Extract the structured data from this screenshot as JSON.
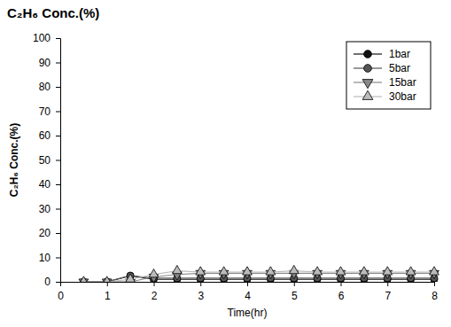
{
  "chart_data": {
    "type": "line",
    "title": "C₂H₆ Conc.(%)",
    "x_label": "Time(hr)",
    "y_label": "C₂H₆ Conc.(%)",
    "x": [
      0.5,
      1,
      1.5,
      2,
      2.5,
      3,
      3.5,
      4,
      4.5,
      5,
      5.5,
      6,
      6.5,
      7,
      7.5,
      8
    ],
    "series": [
      {
        "name": "1bar",
        "color": "#111111",
        "marker": "circle",
        "values": [
          0,
          0,
          2.5,
          1,
          1,
          1,
          1,
          1,
          1,
          1,
          1,
          1,
          1,
          1,
          1,
          1
        ]
      },
      {
        "name": "5bar",
        "color": "#555555",
        "marker": "circle",
        "values": [
          0,
          0,
          2.5,
          1.5,
          1.5,
          1.5,
          1.5,
          1.5,
          1.5,
          1.5,
          1.5,
          1.5,
          1.5,
          1.5,
          1.5,
          1.5
        ]
      },
      {
        "name": "15bar",
        "color": "#888888",
        "marker": "triangle-down",
        "values": [
          0,
          0,
          0,
          2,
          3,
          3.5,
          3.5,
          3.5,
          3.5,
          3.5,
          3.5,
          3.5,
          3.5,
          3.5,
          3.5,
          3.5
        ]
      },
      {
        "name": "30bar",
        "color": "#bbbbbb",
        "marker": "triangle-up",
        "values": [
          0,
          0,
          1,
          3,
          4.5,
          4,
          4,
          4,
          4,
          4.5,
          4,
          4,
          4,
          4,
          4,
          4
        ]
      }
    ],
    "xlim": [
      0,
      8
    ],
    "xticks": [
      0,
      1,
      2,
      3,
      4,
      5,
      6,
      7,
      8
    ],
    "ylim": [
      0,
      100
    ],
    "yticks": [
      0,
      10,
      20,
      30,
      40,
      50,
      60,
      70,
      80,
      90,
      100
    ],
    "grid": false,
    "legend": "upper right"
  }
}
